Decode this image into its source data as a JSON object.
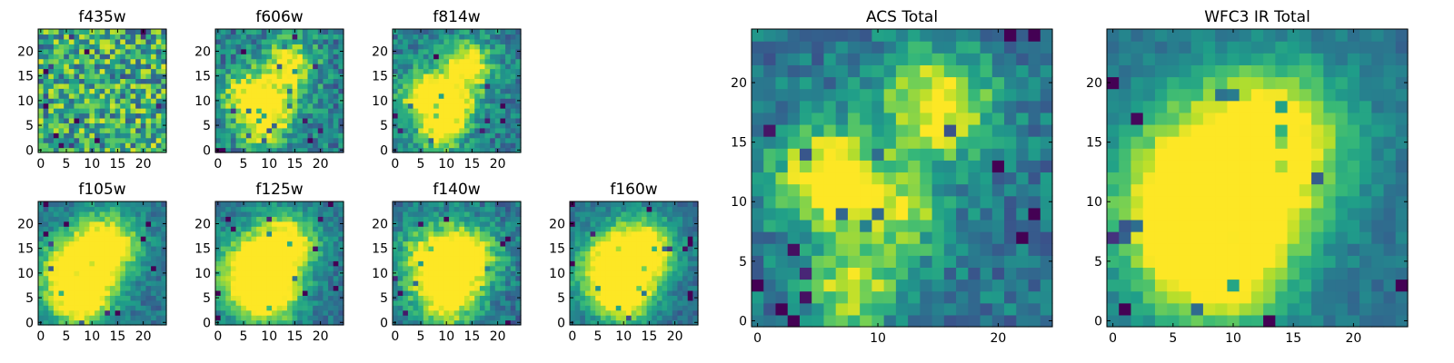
{
  "chart_data": {
    "type": "heatmap",
    "colormap": "viridis",
    "panels": [
      {
        "title": "f435w",
        "pixels": 25,
        "xlim": [
          0,
          24
        ],
        "ylim": [
          0,
          24
        ],
        "xticks": [
          0,
          5,
          10,
          15,
          20
        ],
        "yticks": [
          0,
          5,
          10,
          15,
          20
        ],
        "peaks": [],
        "noise": 0.62,
        "base": 0.62
      },
      {
        "title": "f606w",
        "pixels": 25,
        "xlim": [
          0,
          24
        ],
        "ylim": [
          0,
          24
        ],
        "xticks": [
          0,
          5,
          10,
          15,
          20
        ],
        "yticks": [
          0,
          5,
          10,
          15,
          20
        ],
        "peaks": [
          [
            6,
            11,
            0.7,
            3.5
          ],
          [
            14,
            17,
            0.65,
            3.5
          ],
          [
            9,
            4,
            0.5,
            3
          ],
          [
            12,
            9,
            0.45,
            3
          ]
        ],
        "noise": 0.38,
        "base": 0.42
      },
      {
        "title": "f814w",
        "pixels": 25,
        "xlim": [
          0,
          24
        ],
        "ylim": [
          0,
          24
        ],
        "xticks": [
          0,
          5,
          10,
          15,
          20
        ],
        "yticks": [
          0,
          5,
          10,
          15,
          20
        ],
        "peaks": [
          [
            6,
            11,
            0.75,
            3.5
          ],
          [
            14,
            17,
            0.7,
            3.5
          ],
          [
            9,
            4,
            0.6,
            3
          ],
          [
            12,
            9,
            0.5,
            3
          ]
        ],
        "noise": 0.32,
        "base": 0.42
      },
      {
        "title": "f105w",
        "pixels": 25,
        "xlim": [
          0,
          24
        ],
        "ylim": [
          0,
          24
        ],
        "xticks": [
          0,
          5,
          10,
          15,
          20
        ],
        "yticks": [
          0,
          5,
          10,
          15,
          20
        ],
        "peaks": [
          [
            7,
            10,
            0.8,
            5
          ],
          [
            13,
            16,
            0.7,
            4.5
          ],
          [
            8,
            4,
            0.55,
            4
          ]
        ],
        "noise": 0.22,
        "base": 0.38
      },
      {
        "title": "f125w",
        "pixels": 25,
        "xlim": [
          0,
          24
        ],
        "ylim": [
          0,
          24
        ],
        "xticks": [
          0,
          5,
          10,
          15,
          20
        ],
        "yticks": [
          0,
          5,
          10,
          15,
          20
        ],
        "peaks": [
          [
            7,
            10,
            0.8,
            5
          ],
          [
            13,
            16,
            0.7,
            4.5
          ],
          [
            10,
            5,
            0.6,
            4
          ]
        ],
        "noise": 0.22,
        "base": 0.38
      },
      {
        "title": "f140w",
        "pixels": 25,
        "xlim": [
          0,
          24
        ],
        "ylim": [
          0,
          24
        ],
        "xticks": [
          0,
          5,
          10,
          15,
          20
        ],
        "yticks": [
          0,
          5,
          10,
          15,
          20
        ],
        "peaks": [
          [
            8,
            12,
            0.7,
            5
          ],
          [
            14,
            13,
            0.65,
            4.5
          ],
          [
            10,
            4,
            0.55,
            4
          ]
        ],
        "noise": 0.28,
        "base": 0.38
      },
      {
        "title": "f160w",
        "pixels": 25,
        "xlim": [
          0,
          24
        ],
        "ylim": [
          0,
          24
        ],
        "xticks": [
          0,
          5,
          10,
          15,
          20
        ],
        "yticks": [
          0,
          5,
          10,
          15,
          20
        ],
        "peaks": [
          [
            8,
            11,
            0.8,
            5
          ],
          [
            14,
            15,
            0.7,
            4.5
          ],
          [
            10,
            5,
            0.6,
            4
          ]
        ],
        "noise": 0.2,
        "base": 0.36
      },
      {
        "title": "ACS Total",
        "pixels": 25,
        "xlim": [
          0,
          24
        ],
        "ylim": [
          0,
          24
        ],
        "xticks": [
          0,
          10,
          20
        ],
        "yticks": [
          0,
          5,
          10,
          15,
          20
        ],
        "peaks": [
          [
            6,
            12,
            0.75,
            3
          ],
          [
            15,
            18,
            0.7,
            3
          ],
          [
            8,
            3,
            0.55,
            2.5
          ],
          [
            12,
            9,
            0.45,
            2.5
          ]
        ],
        "noise": 0.28,
        "base": 0.4
      },
      {
        "title": "WFC3 IR Total",
        "pixels": 25,
        "xlim": [
          0,
          24
        ],
        "ylim": [
          0,
          24
        ],
        "xticks": [
          0,
          5,
          10,
          15,
          20
        ],
        "yticks": [
          0,
          5,
          10,
          15,
          20
        ],
        "peaks": [
          [
            7,
            10,
            0.8,
            5
          ],
          [
            13,
            15,
            0.75,
            4.5
          ],
          [
            9,
            5,
            0.6,
            4
          ]
        ],
        "noise": 0.15,
        "base": 0.38
      }
    ]
  }
}
